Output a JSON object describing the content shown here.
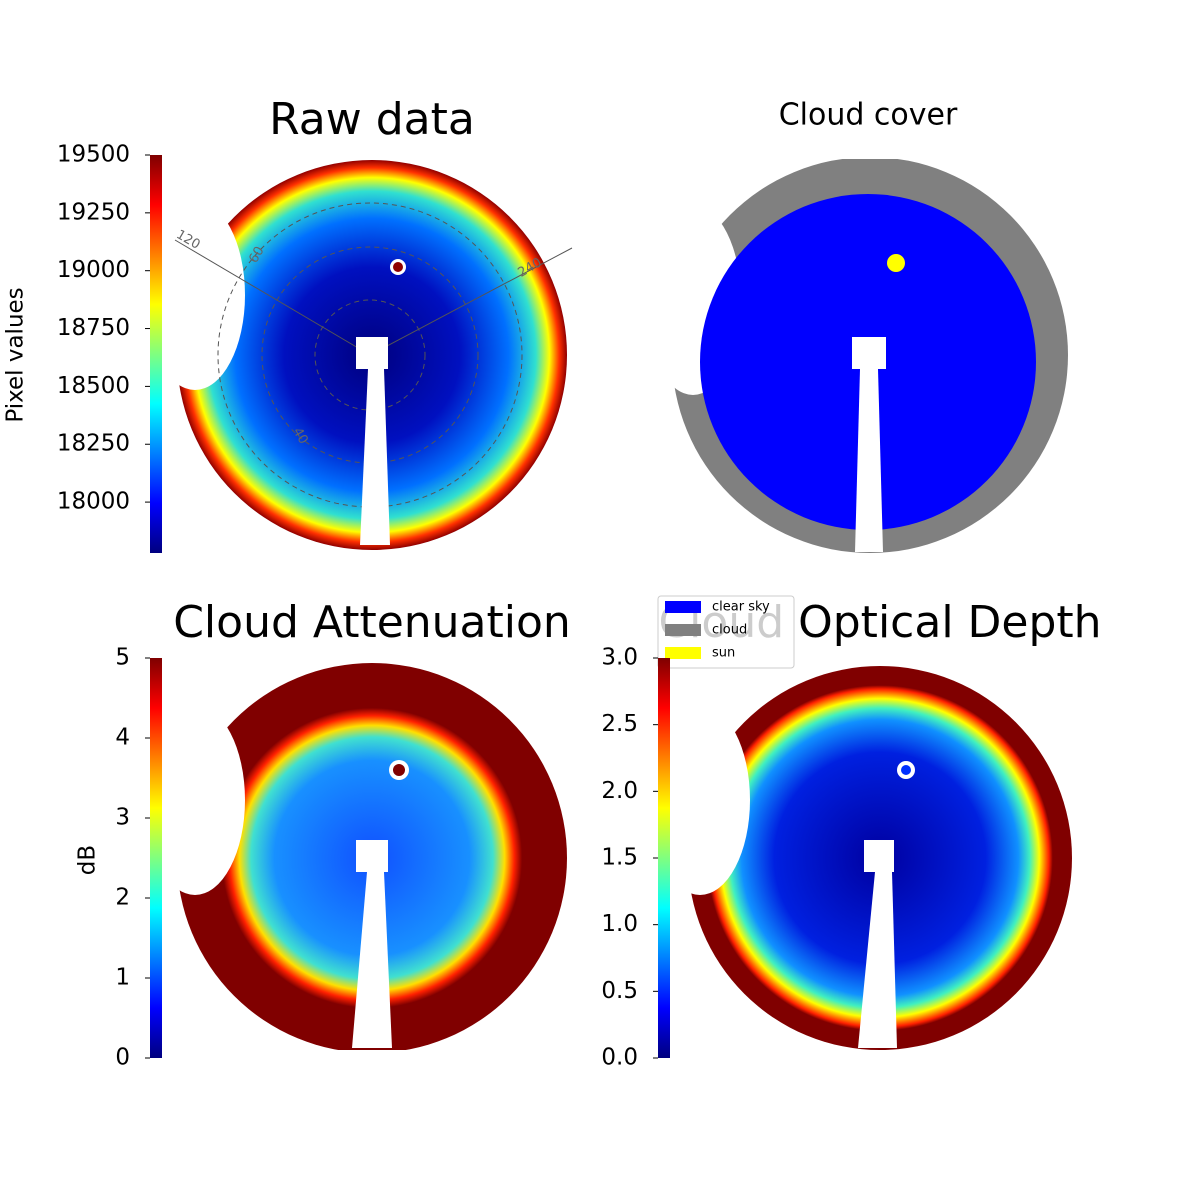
{
  "chart_data": [
    {
      "type": "image",
      "title": "Raw data",
      "colormap": "jet",
      "colorbar_label": "Pixel values",
      "ylim": [
        17780,
        19500
      ],
      "yticks": [
        18000,
        18250,
        18500,
        18750,
        19000,
        19250,
        19500
      ],
      "annotations": [
        "120",
        "60",
        "240",
        "40"
      ]
    },
    {
      "type": "image",
      "title": "Cloud cover",
      "legend": [
        {
          "name": "clear sky",
          "color": "#0000ff"
        },
        {
          "name": "cloud",
          "color": "#808080"
        },
        {
          "name": "sun",
          "color": "#ffff00"
        }
      ]
    },
    {
      "type": "image",
      "title": "Cloud Attenuation",
      "colormap": "jet",
      "colorbar_label": "dB",
      "ylim": [
        0,
        5
      ],
      "yticks": [
        0,
        1,
        2,
        3,
        4,
        5
      ]
    },
    {
      "type": "image",
      "title": "Cloud Optical Depth",
      "colormap": "jet",
      "ylim": [
        0,
        3
      ],
      "yticks": [
        {
          "value": 0,
          "label": "0.0"
        },
        {
          "value": 0.5,
          "label": "0.5"
        },
        {
          "value": 1,
          "label": "1.0"
        },
        {
          "value": 1.5,
          "label": "1.5"
        },
        {
          "value": 2,
          "label": "2.0"
        },
        {
          "value": 2.5,
          "label": "2.5"
        },
        {
          "value": 3,
          "label": "3.0"
        }
      ]
    }
  ]
}
